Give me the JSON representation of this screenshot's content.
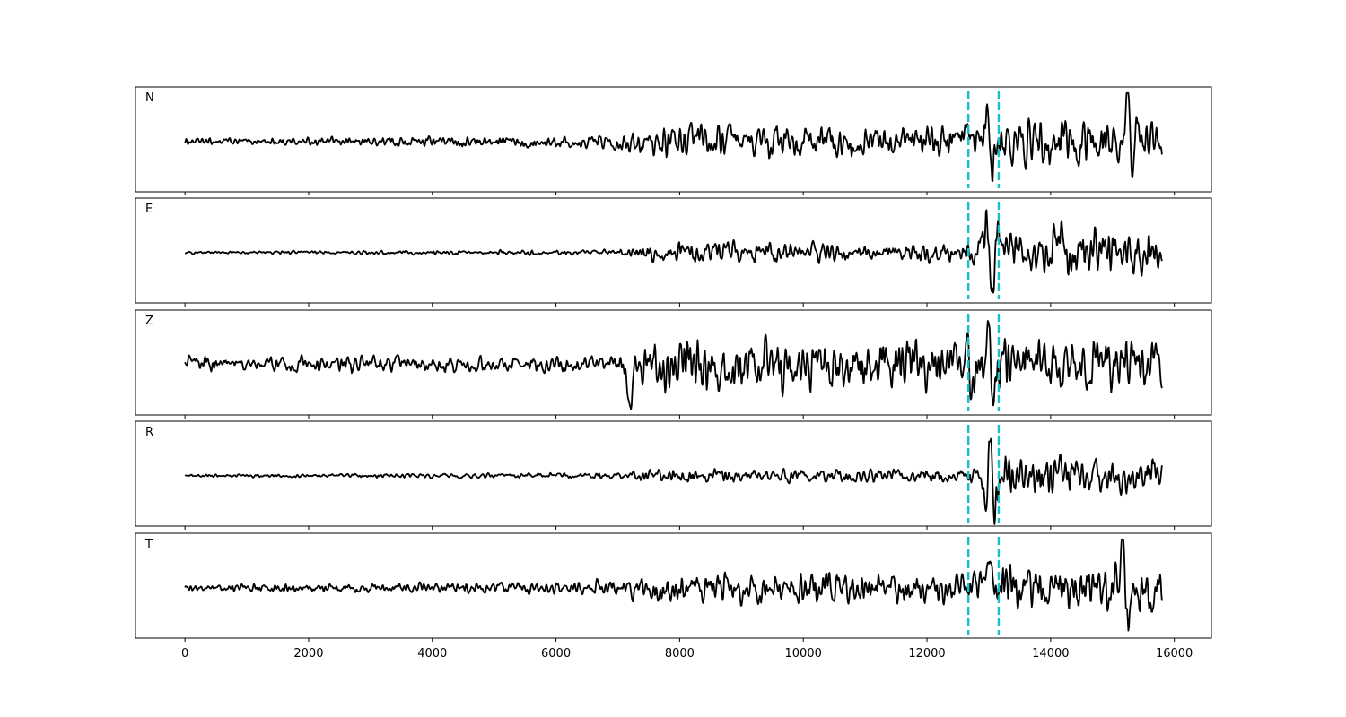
{
  "chart_data": {
    "type": "line",
    "title": "",
    "xlabel": "",
    "ylabel": "",
    "xlim": [
      -800,
      16600
    ],
    "xticks": [
      0,
      2000,
      4000,
      6000,
      8000,
      10000,
      12000,
      14000,
      16000
    ],
    "xtick_labels": [
      "0",
      "2000",
      "4000",
      "6000",
      "8000",
      "10000",
      "12000",
      "14000",
      "16000"
    ],
    "sample_range": [
      0,
      15800
    ],
    "marker_lines": [
      12670,
      13160
    ],
    "colors": {
      "trace": "#000000",
      "marker": "#17becf",
      "axes": "#000000"
    },
    "y_ticks_shown": false,
    "grid": false,
    "panels": [
      {
        "label": "N",
        "noise_level": [
          0.05,
          0.12,
          0.25,
          0.35
        ],
        "events": [
          {
            "x": 13000,
            "amp": 0.6,
            "width": 60
          },
          {
            "x": 13060,
            "amp": -1.05,
            "width": 40
          },
          {
            "x": 15250,
            "amp": 1.05,
            "width": 45
          },
          {
            "x": 15310,
            "amp": -1.0,
            "width": 45
          }
        ]
      },
      {
        "label": "E",
        "noise_level": [
          0.02,
          0.05,
          0.15,
          0.35
        ],
        "events": [
          {
            "x": 12970,
            "amp": 0.95,
            "width": 60
          },
          {
            "x": 13050,
            "amp": -1.05,
            "width": 50
          },
          {
            "x": 13160,
            "amp": 0.6,
            "width": 50
          },
          {
            "x": 14150,
            "amp": 0.7,
            "width": 60
          }
        ]
      },
      {
        "label": "Z",
        "noise_level": [
          0.12,
          0.12,
          0.4,
          0.45
        ],
        "events": [
          {
            "x": 7200,
            "amp": -0.95,
            "width": 50
          },
          {
            "x": 13000,
            "amp": 1.05,
            "width": 45
          },
          {
            "x": 13060,
            "amp": -0.55,
            "width": 40
          }
        ]
      },
      {
        "label": "R",
        "noise_level": [
          0.02,
          0.05,
          0.1,
          0.3
        ],
        "events": [
          {
            "x": 12960,
            "amp": -0.6,
            "width": 50
          },
          {
            "x": 13020,
            "amp": 1.05,
            "width": 45
          },
          {
            "x": 13080,
            "amp": -1.0,
            "width": 45
          },
          {
            "x": 14130,
            "amp": 0.55,
            "width": 60
          }
        ]
      },
      {
        "label": "T",
        "noise_level": [
          0.05,
          0.12,
          0.25,
          0.35
        ],
        "events": [
          {
            "x": 13000,
            "amp": 0.45,
            "width": 50
          },
          {
            "x": 13070,
            "amp": 0.55,
            "width": 45
          },
          {
            "x": 15170,
            "amp": 1.05,
            "width": 45
          },
          {
            "x": 15250,
            "amp": -1.05,
            "width": 45
          }
        ]
      }
    ]
  }
}
